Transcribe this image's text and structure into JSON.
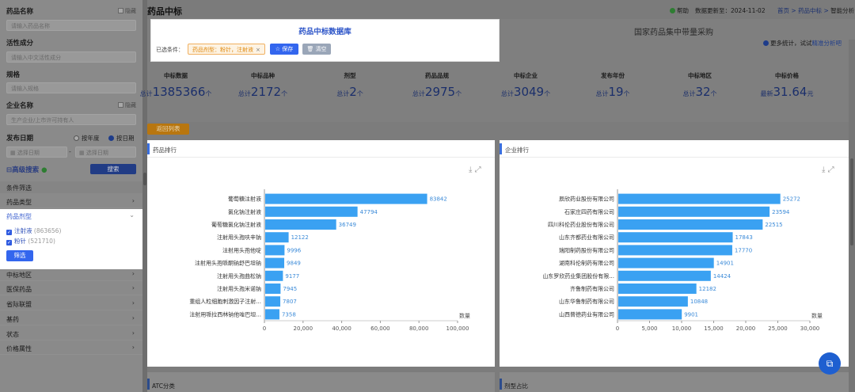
{
  "sidebar": {
    "drug_name_label": "药品名称",
    "drug_name_hide": "隐藏",
    "drug_name_placeholder": "请输入药品名称",
    "ingredient_label": "活性成分",
    "ingredient_placeholder": "请输入中文活性成分",
    "spec_label": "规格",
    "spec_placeholder": "请输入规格",
    "company_label": "企业名称",
    "company_hide": "隐藏",
    "company_placeholder": "生产企业/上市许可持有人",
    "date_label": "发布日期",
    "by_year": "按年度",
    "by_date": "按日期",
    "date_placeholder": "选择日期",
    "date_sep": "-",
    "advanced_search": "高级搜索",
    "search_button": "搜索",
    "filter_title": "条件筛选",
    "drug_type_label": "药品类型",
    "dosage_form_label": "药品剂型",
    "dosage_options": [
      {
        "label": "注射液",
        "count": "(863656)"
      },
      {
        "label": "粉针",
        "count": "(521710)"
      }
    ],
    "filter_button": "筛选",
    "groups": [
      "中标地区",
      "医保药品",
      "省际联盟",
      "基药",
      "状态",
      "价格属性"
    ]
  },
  "topbar": {
    "title": "药品中标",
    "help": "帮助",
    "update": "数据更新至：2024-11-02",
    "crumb_home": "首页",
    "crumb_sep1": " > ",
    "crumb_mid": "药品中标",
    "crumb_sep2": " > ",
    "crumb_cur": "智能分析"
  },
  "header": {
    "banner_title": "国家药品集中带量采购",
    "more_stats_prefix": "更多统计，试试",
    "more_stats_link": "精准分析吧"
  },
  "stats": [
    {
      "label": "中标数据",
      "prefix": "总计",
      "value": "1385366",
      "suffix": "个"
    },
    {
      "label": "中标品种",
      "prefix": "总计",
      "value": "2172",
      "suffix": "个"
    },
    {
      "label": "剂型",
      "prefix": "总计",
      "value": "2",
      "suffix": "个"
    },
    {
      "label": "药品品规",
      "prefix": "总计",
      "value": "2975",
      "suffix": "个"
    },
    {
      "label": "中标企业",
      "prefix": "总计",
      "value": "3049",
      "suffix": "个"
    },
    {
      "label": "发布年份",
      "prefix": "总计",
      "value": "19",
      "suffix": "个"
    },
    {
      "label": "中标地区",
      "prefix": "总计",
      "value": "32",
      "suffix": "个"
    },
    {
      "label": "中标价格",
      "prefix": "最新",
      "value": "31.64",
      "suffix": "元"
    }
  ],
  "popup": {
    "title": "药品中标数据库",
    "selected_label": "已选条件：",
    "tag": "药品剂型：粉针，注射液",
    "tag_close": "×",
    "save": "保存",
    "clear": "清空"
  },
  "back_button": "返回列表",
  "panels": {
    "left_title": "药品排行",
    "right_title": "企业排行",
    "lower_left": "ATC分类",
    "lower_right": "剂型占比"
  },
  "chart_data": [
    {
      "type": "bar",
      "orientation": "horizontal",
      "categories": [
        "葡萄糖注射液",
        "氯化钠注射液",
        "葡萄糖氯化钠注射液",
        "注射用头孢呋辛钠",
        "注射用头孢他啶",
        "注射用头孢哌酮钠舒巴坦钠",
        "注射用头孢曲松钠",
        "注射用头孢米诺钠",
        "重组人粒细胞刺激因子注射...",
        "注射用哌拉西林钠他唑巴坦..."
      ],
      "values": [
        83842,
        47794,
        36749,
        12122,
        9996,
        9849,
        9177,
        7945,
        7807,
        7358
      ],
      "xlabel": "数量",
      "xlim": [
        0,
        100000
      ],
      "ticks": [
        "0",
        "20,000",
        "40,000",
        "60,000",
        "80,000",
        "100,000"
      ],
      "color": "#3aa1f2"
    },
    {
      "type": "bar",
      "orientation": "horizontal",
      "categories": [
        "辰欣药业股份有限公司",
        "石家庄四药有限公司",
        "四川科伦药业股份有限公司",
        "山东齐都药业有限公司",
        "瑞阳制药股份有限公司",
        "湖南科伦制药有限公司",
        "山东罗欣药业集团股份有限...",
        "齐鲁制药有限公司",
        "山东华鲁制药有限公司",
        "山西普德药业有限公司"
      ],
      "values": [
        25272,
        23594,
        22515,
        17843,
        17770,
        14901,
        14424,
        12182,
        10848,
        9901
      ],
      "xlabel": "数量",
      "xlim": [
        0,
        30000
      ],
      "ticks": [
        "0",
        "5,000",
        "10,000",
        "15,000",
        "20,000",
        "25,000",
        "30,000"
      ],
      "color": "#3aa1f2"
    }
  ]
}
